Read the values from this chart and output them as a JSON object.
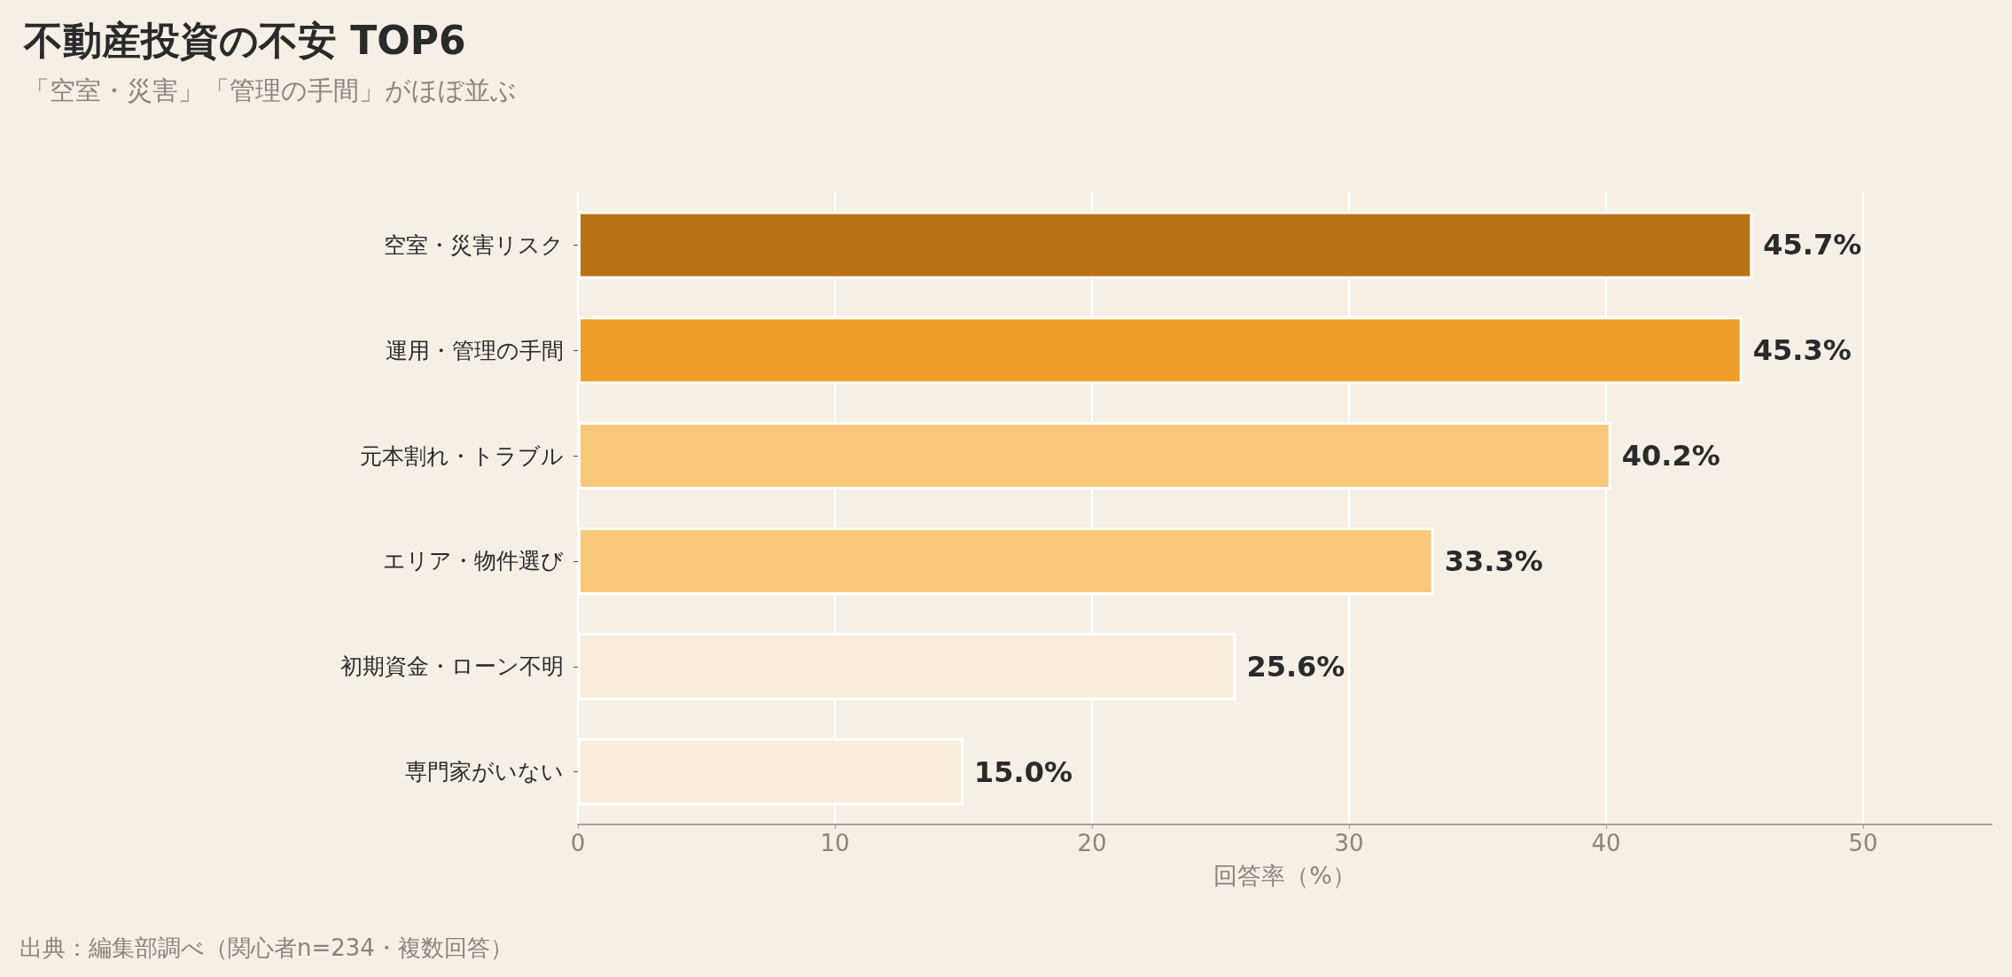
{
  "chart_data": {
    "type": "bar",
    "orientation": "horizontal",
    "title": "不動産投資の不安 TOP6",
    "subtitle": "「空室・災害」「管理の手間」がほぼ並ぶ",
    "xlabel": "回答率（%）",
    "categories": [
      "空室・災害リスク",
      "運用・管理の手間",
      "元本割れ・トラブル",
      "エリア・物件選び",
      "初期資金・ローン不明",
      "専門家がいない"
    ],
    "values": [
      45.7,
      45.3,
      40.2,
      33.3,
      25.6,
      15.0
    ],
    "value_labels": [
      "45.7%",
      "45.3%",
      "40.2%",
      "33.3%",
      "25.6%",
      "15.0%"
    ],
    "colors": [
      "#b87316",
      "#f0a02a",
      "#f9c87a",
      "#f9c87a",
      "#f8ecdb",
      "#f8ecdb"
    ],
    "xlim": [
      0,
      55
    ],
    "xticks": [
      0,
      10,
      20,
      30,
      40,
      50
    ],
    "grid": "x",
    "annotations": [
      "出典：編集部調べ（関心者n=234・複数回答）"
    ]
  }
}
